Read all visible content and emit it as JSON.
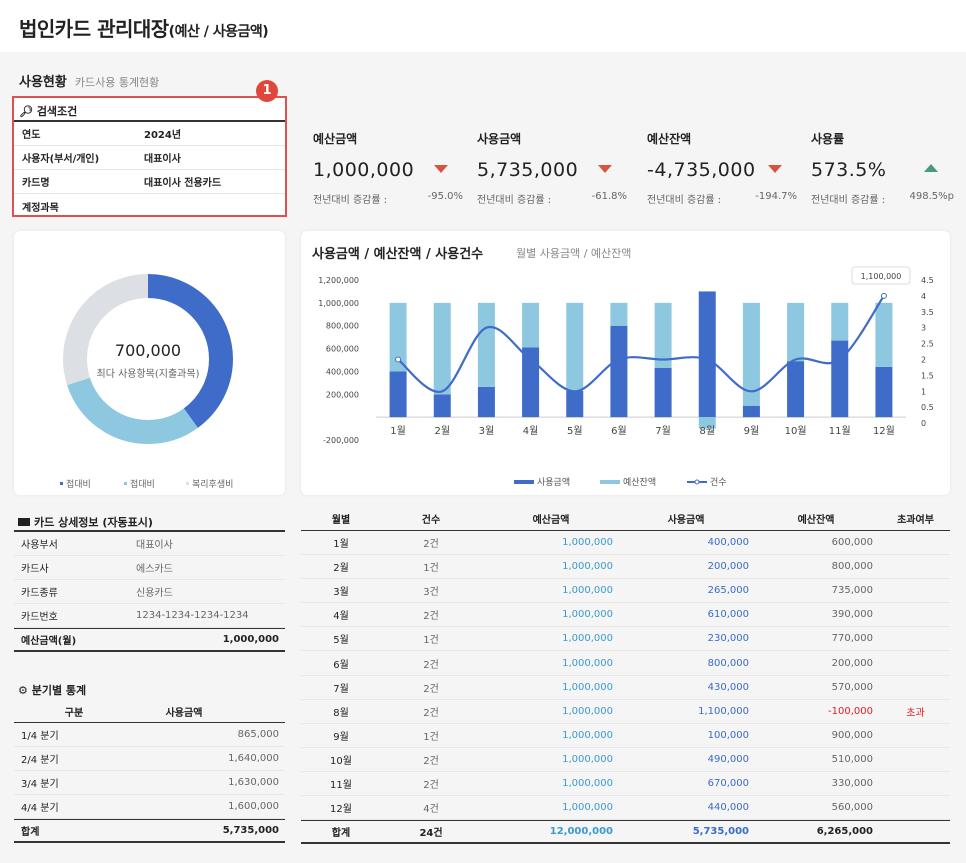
{
  "header": {
    "title": "법인카드 관리대장",
    "subtitle": "(예산 / 사용금액)"
  },
  "section": {
    "title": "사용현황",
    "sub": "카드사용 통계현황"
  },
  "badge": "1",
  "filter": {
    "title": "검색조건",
    "rows": [
      {
        "label": "연도",
        "value": "2024년"
      },
      {
        "label": "사용자(부서/개인)",
        "value": "대표이사"
      },
      {
        "label": "카드명",
        "value": "대표이사 전용카드"
      },
      {
        "label": "계정과목",
        "value": ""
      }
    ]
  },
  "kpis": [
    {
      "label": "예산금액",
      "value": "1,000,000",
      "sub_label": "전년대비 증감률 :",
      "sub_value": "-95.0%",
      "trend": "down"
    },
    {
      "label": "사용금액",
      "value": "5,735,000",
      "sub_label": "전년대비 증감률 :",
      "sub_value": "-61.8%",
      "trend": "down"
    },
    {
      "label": "예산잔액",
      "value": "-4,735,000",
      "sub_label": "전년대비 증감률 :",
      "sub_value": "-194.7%",
      "trend": "down"
    },
    {
      "label": "사용률",
      "value": "573.5%",
      "sub_label": "전년대비 증감률 :",
      "sub_value": "498.5%p",
      "trend": "up"
    }
  ],
  "donut": {
    "center_value": "700,000",
    "center_label": "최다 사용항목(지출과목)",
    "segments": [
      {
        "name": "접대비",
        "value": 0.4,
        "color": "#3f6cc9"
      },
      {
        "name": "접대비",
        "value": 0.3,
        "color": "#8dc8e0"
      },
      {
        "name": "복리후생비",
        "value": 0.3,
        "color": "#dcdfe3"
      }
    ]
  },
  "chart": {
    "title": "사용금액 / 예산잔액 / 사용건수",
    "sub": "월별 사용금액 / 예산잔액",
    "tooltip": "1,100,000",
    "legend": [
      "사용금액",
      "예산잔액",
      "건수"
    ]
  },
  "chart_data": {
    "type": "bar",
    "categories": [
      "1월",
      "2월",
      "3월",
      "4월",
      "5월",
      "6월",
      "7월",
      "8월",
      "9월",
      "10월",
      "11월",
      "12월"
    ],
    "series": [
      {
        "name": "사용금액",
        "values": [
          400000,
          200000,
          265000,
          610000,
          230000,
          800000,
          430000,
          1100000,
          100000,
          490000,
          670000,
          440000
        ],
        "color": "#3f6cc9"
      },
      {
        "name": "예산잔액",
        "values": [
          600000,
          800000,
          735000,
          390000,
          770000,
          200000,
          570000,
          -100000,
          900000,
          510000,
          330000,
          560000
        ],
        "color": "#8dc8e0"
      },
      {
        "name": "건수",
        "values": [
          2,
          1,
          3,
          2,
          1,
          2,
          2,
          2,
          1,
          2,
          2,
          4
        ],
        "color": "#3f6cc9",
        "axis": "right"
      }
    ],
    "y_left_ticks": [
      "1,200,000",
      "1,000,000",
      "800,000",
      "600,000",
      "400,000",
      "200,000",
      "-200,000"
    ],
    "y_right_ticks": [
      "4.5",
      "4",
      "3.5",
      "3",
      "2.5",
      "2",
      "1.5",
      "1",
      "0.5",
      "0"
    ],
    "ylim": [
      -200000,
      1200000
    ],
    "y2lim": [
      0,
      4.5
    ]
  },
  "card_info": {
    "title": "카드 상세정보 (자동표시)",
    "rows": [
      {
        "label": "사용부서",
        "value": "대표이사"
      },
      {
        "label": "카드사",
        "value": "에스카드"
      },
      {
        "label": "카드종류",
        "value": "신용카드"
      },
      {
        "label": "카드번호",
        "value": "1234-1234-1234-1234"
      }
    ],
    "total": {
      "label": "예산금액(월)",
      "value": "1,000,000"
    }
  },
  "quarter": {
    "title": "분기별 통계",
    "headers": [
      "구분",
      "사용금액"
    ],
    "rows": [
      {
        "q": "1/4 분기",
        "v": "865,000"
      },
      {
        "q": "2/4 분기",
        "v": "1,640,000"
      },
      {
        "q": "3/4 분기",
        "v": "1,630,000"
      },
      {
        "q": "4/4 분기",
        "v": "1,600,000"
      }
    ],
    "total": {
      "q": "합계",
      "v": "5,735,000"
    }
  },
  "monthly": {
    "headers": [
      "월별",
      "건수",
      "예산금액",
      "사용금액",
      "예산잔액",
      "초과여부"
    ],
    "rows": [
      [
        "1월",
        "2건",
        "1,000,000",
        "400,000",
        "600,000",
        ""
      ],
      [
        "2월",
        "1건",
        "1,000,000",
        "200,000",
        "800,000",
        ""
      ],
      [
        "3월",
        "3건",
        "1,000,000",
        "265,000",
        "735,000",
        ""
      ],
      [
        "4월",
        "2건",
        "1,000,000",
        "610,000",
        "390,000",
        ""
      ],
      [
        "5월",
        "1건",
        "1,000,000",
        "230,000",
        "770,000",
        ""
      ],
      [
        "6월",
        "2건",
        "1,000,000",
        "800,000",
        "200,000",
        ""
      ],
      [
        "7월",
        "2건",
        "1,000,000",
        "430,000",
        "570,000",
        ""
      ],
      [
        "8월",
        "2건",
        "1,000,000",
        "1,100,000",
        "-100,000",
        "초과"
      ],
      [
        "9월",
        "1건",
        "1,000,000",
        "100,000",
        "900,000",
        ""
      ],
      [
        "10월",
        "2건",
        "1,000,000",
        "490,000",
        "510,000",
        ""
      ],
      [
        "11월",
        "2건",
        "1,000,000",
        "670,000",
        "330,000",
        ""
      ],
      [
        "12월",
        "4건",
        "1,000,000",
        "440,000",
        "560,000",
        ""
      ]
    ],
    "total": [
      "합계",
      "24건",
      "12,000,000",
      "5,735,000",
      "6,265,000",
      ""
    ]
  }
}
